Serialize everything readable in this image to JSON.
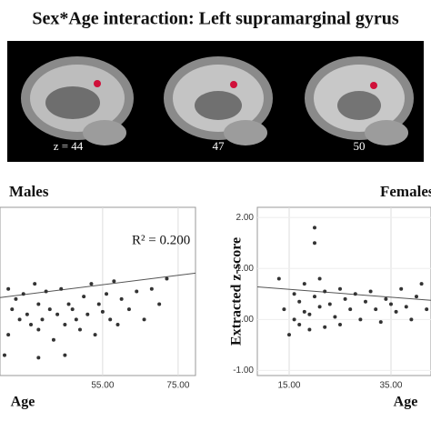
{
  "title": "Sex*Age interaction: Left supramarginal gyrus",
  "brain_slices": [
    "z = 44",
    "47",
    "50"
  ],
  "chart_data": [
    {
      "type": "scatter",
      "title": "Males",
      "xlabel": "Age",
      "annotation": "R² = 0.200",
      "color": "#333333",
      "xlim": [
        27.8,
        79.6
      ],
      "ylim": [
        -1.1,
        2.2
      ],
      "xticks": [
        {
          "value": 55,
          "label": "55.00"
        },
        {
          "value": 75,
          "label": "75.00"
        }
      ],
      "yticks": [],
      "grid": true,
      "x": [
        30,
        31,
        30,
        29,
        32,
        33,
        34,
        35,
        36,
        37,
        38,
        38,
        39,
        40,
        41,
        42,
        43,
        44,
        45,
        46,
        47,
        48,
        49,
        50,
        51,
        52,
        53,
        54,
        55,
        56,
        57,
        58,
        59,
        60,
        62,
        64,
        66,
        68,
        70,
        72,
        38,
        45
      ],
      "values": [
        0.6,
        0.2,
        -0.3,
        -0.7,
        0.4,
        0.0,
        0.5,
        0.1,
        -0.1,
        0.7,
        0.3,
        -0.2,
        0.0,
        0.55,
        0.2,
        -0.4,
        0.1,
        0.6,
        -0.1,
        0.3,
        0.2,
        0.0,
        -0.2,
        0.45,
        0.1,
        0.7,
        -0.3,
        0.3,
        0.15,
        0.5,
        0.0,
        0.75,
        -0.1,
        0.4,
        0.2,
        0.55,
        0.0,
        0.6,
        0.3,
        0.8,
        -0.75,
        -0.7
      ],
      "fit": {
        "x": [
          27.8,
          79.6
        ],
        "values": [
          0.43,
          0.91
        ]
      }
    },
    {
      "type": "scatter",
      "title": "Females",
      "xlabel": "Age",
      "ylabel": "Extracted z-score",
      "color": "#333333",
      "xlim": [
        8.75,
        42.86
      ],
      "ylim": [
        -1.1,
        2.2
      ],
      "xticks": [
        {
          "value": 15,
          "label": "15.00"
        },
        {
          "value": 35,
          "label": "35.00"
        }
      ],
      "yticks": [
        {
          "value": 2,
          "label": "2.00"
        },
        {
          "value": 1,
          "label": "1.00"
        },
        {
          "value": 0,
          "label": ".00"
        },
        {
          "value": -1,
          "label": "-1.00"
        }
      ],
      "grid": true,
      "x": [
        13,
        14,
        15,
        16,
        16,
        17,
        17,
        18,
        18,
        19,
        19,
        20,
        20,
        20,
        21,
        21,
        22,
        22,
        23,
        24,
        25,
        25,
        26,
        27,
        28,
        29,
        30,
        31,
        32,
        33,
        34,
        35,
        36,
        37,
        38,
        39,
        40,
        41,
        42
      ],
      "values": [
        0.8,
        0.2,
        -0.3,
        0.5,
        0.0,
        0.35,
        -0.1,
        0.7,
        0.15,
        0.1,
        -0.2,
        0.45,
        1.8,
        1.5,
        0.8,
        0.25,
        0.55,
        -0.15,
        0.3,
        0.05,
        0.6,
        -0.1,
        0.4,
        0.2,
        0.5,
        0.0,
        0.35,
        0.55,
        0.2,
        -0.05,
        0.4,
        0.3,
        0.15,
        0.6,
        0.25,
        0.0,
        0.45,
        0.7,
        0.2
      ],
      "fit": {
        "x": [
          8.75,
          42.86
        ],
        "values": [
          0.64,
          0.375
        ]
      }
    }
  ]
}
